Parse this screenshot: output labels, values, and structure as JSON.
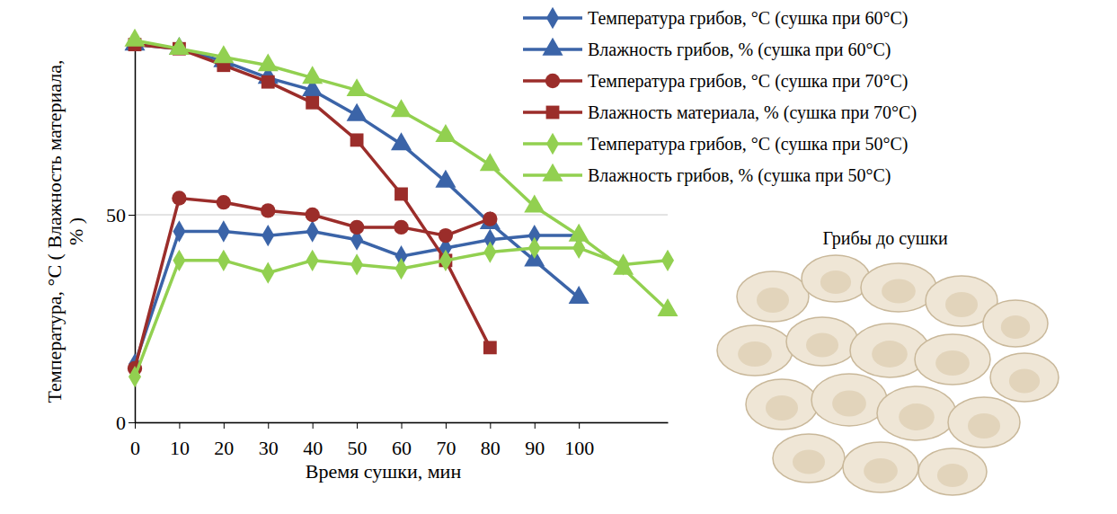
{
  "chart_data": {
    "type": "line",
    "x_label": "Время сушки, мин",
    "y_label": "Температура, °C ( Влажность материала, % )",
    "annotation": "Грибы до сушки",
    "x": [
      0,
      10,
      20,
      30,
      40,
      50,
      60,
      70,
      80,
      90,
      100,
      110,
      120
    ],
    "xlim": [
      0,
      120
    ],
    "xticks": [
      0,
      10,
      20,
      30,
      40,
      50,
      60,
      70,
      80,
      90,
      100
    ],
    "ylim": [
      0,
      92
    ],
    "yticks": [
      0,
      50
    ],
    "grid": true,
    "legend": "upper right",
    "series": [
      {
        "name": "Температура грибов, °C (сушка при 60°C)",
        "color": "#3b64a8",
        "marker": "diamond",
        "values": [
          14,
          46,
          46,
          45,
          46,
          44,
          40,
          42,
          44,
          45,
          45,
          null,
          null
        ]
      },
      {
        "name": "Влажность грибов, % (сушка при 60°C)",
        "color": "#3b64a8",
        "marker": "triangle",
        "values": [
          91,
          90,
          87,
          83,
          80,
          74,
          67,
          58,
          48,
          39,
          30,
          null,
          null
        ]
      },
      {
        "name": "Температура грибов, °C (сушка при 70°C)",
        "color": "#9b2d2a",
        "marker": "circle",
        "values": [
          13,
          54,
          53,
          51,
          50,
          47,
          47,
          45,
          49,
          null,
          null,
          null,
          null
        ]
      },
      {
        "name": "Влажность материала, % (сушка при 70°C)",
        "color": "#9b2d2a",
        "marker": "square",
        "values": [
          91,
          90,
          86,
          82,
          77,
          68,
          55,
          39,
          18,
          null,
          null,
          null,
          null
        ]
      },
      {
        "name": "Температура грибов, °C (сушка при 50°C)",
        "color": "#92d050",
        "marker": "diamond",
        "values": [
          11,
          39,
          39,
          36,
          39,
          38,
          37,
          39,
          41,
          42,
          42,
          38,
          39
        ]
      },
      {
        "name": "Влажность грибов, % (сушка при 50°C)",
        "color": "#92d050",
        "marker": "triangle",
        "values": [
          92,
          90,
          88,
          86,
          83,
          80,
          75,
          69,
          62,
          52,
          45,
          37,
          27
        ]
      }
    ]
  }
}
